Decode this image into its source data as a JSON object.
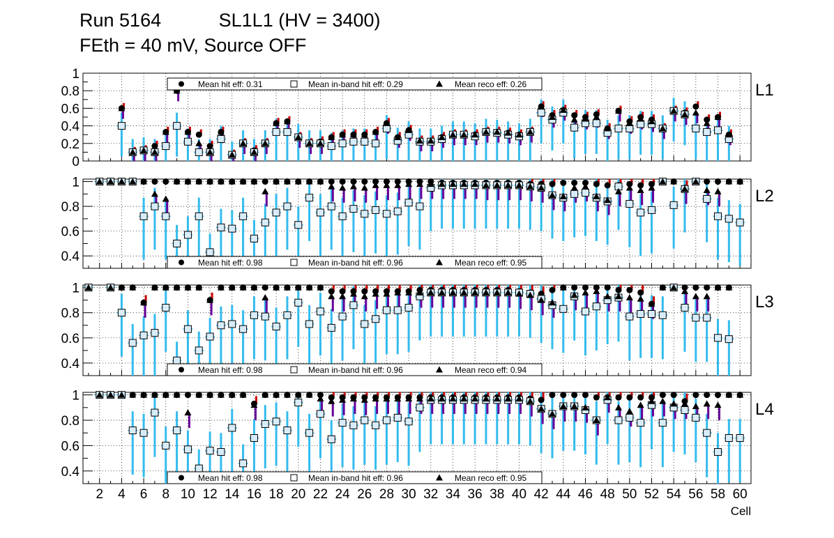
{
  "title": {
    "run": "Run 5164",
    "chamber": "SL1L1 (HV = 3400)",
    "conditions": "FEth = 40 mV, Source OFF"
  },
  "colors": {
    "hit": "#000000",
    "inband_err": "#33bbee",
    "reco_err": "#660099",
    "hit_err": "#cc0000",
    "box_fill": "#d8ecf8"
  },
  "chart_data": [
    {
      "type": "scatter",
      "panel": "L1",
      "layer_label": "L1",
      "xlabel": "Cell",
      "ylabel": "",
      "xlim": [
        0.5,
        61
      ],
      "ylim": [
        0,
        1
      ],
      "yticks": [
        "0",
        "0.2",
        "0.4",
        "0.6",
        "0.8",
        "1"
      ],
      "yticks_values": [
        0,
        0.2,
        0.4,
        0.6,
        0.8,
        1
      ],
      "legend": {
        "hit": "Mean hit  eff: 0.31",
        "inband": "Mean in-band hit eff: 0.29",
        "reco": "Mean reco eff: 0.26"
      },
      "cells": [
        4,
        5,
        6,
        7,
        8,
        9,
        10,
        11,
        12,
        13,
        14,
        15,
        16,
        17,
        18,
        19,
        20,
        21,
        22,
        23,
        24,
        25,
        26,
        27,
        28,
        29,
        30,
        31,
        32,
        33,
        34,
        35,
        36,
        37,
        38,
        39,
        40,
        41,
        42,
        43,
        44,
        45,
        46,
        47,
        48,
        49,
        50,
        51,
        52,
        53,
        54,
        55,
        56,
        57,
        58,
        59
      ],
      "series": [
        {
          "name": "hit",
          "values": [
            0.6,
            0.1,
            0.12,
            0.17,
            0.33,
            0.8,
            0.33,
            0.3,
            0.17,
            0.33,
            0.07,
            0.2,
            0.12,
            0.2,
            0.43,
            0.45,
            0.27,
            0.2,
            0.22,
            0.27,
            0.3,
            0.3,
            0.3,
            0.33,
            0.43,
            0.27,
            0.35,
            0.23,
            0.23,
            0.27,
            0.3,
            0.3,
            0.3,
            0.33,
            0.33,
            0.32,
            0.3,
            0.33,
            0.62,
            0.52,
            0.58,
            0.52,
            0.5,
            0.53,
            0.37,
            0.57,
            0.45,
            0.5,
            0.47,
            0.37,
            0.57,
            0.55,
            0.62,
            0.47,
            0.5,
            0.3
          ]
        },
        {
          "name": "inband",
          "values": [
            0.4,
            0.1,
            0.12,
            0.1,
            0.17,
            0.4,
            0.22,
            0.1,
            0.1,
            0.25,
            0.07,
            0.2,
            0.1,
            0.2,
            0.33,
            0.33,
            0.27,
            0.2,
            0.2,
            0.17,
            0.2,
            0.22,
            0.22,
            0.2,
            0.37,
            0.23,
            0.3,
            0.22,
            0.22,
            0.25,
            0.3,
            0.3,
            0.28,
            0.33,
            0.32,
            0.3,
            0.28,
            0.33,
            0.55,
            0.47,
            0.55,
            0.38,
            0.43,
            0.43,
            0.32,
            0.37,
            0.37,
            0.42,
            0.42,
            0.37,
            0.57,
            0.53,
            0.37,
            0.33,
            0.35,
            0.25
          ]
        },
        {
          "name": "reco",
          "values": [
            0.6,
            0.1,
            0.12,
            0.1,
            0.33,
            0.8,
            0.33,
            0.2,
            0.1,
            0.33,
            0.07,
            0.2,
            0.1,
            0.2,
            0.43,
            0.45,
            0.27,
            0.2,
            0.2,
            0.27,
            0.3,
            0.3,
            0.3,
            0.33,
            0.43,
            0.27,
            0.35,
            0.23,
            0.23,
            0.27,
            0.3,
            0.3,
            0.3,
            0.33,
            0.33,
            0.32,
            0.3,
            0.33,
            0.62,
            0.5,
            0.58,
            0.47,
            0.48,
            0.5,
            0.37,
            0.57,
            0.43,
            0.48,
            0.45,
            0.37,
            0.57,
            0.53,
            0.55,
            0.43,
            0.5,
            0.3
          ]
        }
      ]
    },
    {
      "type": "scatter",
      "panel": "L2",
      "layer_label": "L2",
      "xlabel": "Cell",
      "ylabel": "",
      "xlim": [
        0.5,
        61
      ],
      "ylim": [
        0.3,
        1.02
      ],
      "yticks": [
        "0.4",
        "0.6",
        "0.8",
        "1"
      ],
      "yticks_values": [
        0.4,
        0.6,
        0.8,
        1
      ],
      "legend": {
        "hit": "Mean hit  eff: 0.98",
        "inband": "Mean in-band hit eff: 0.96",
        "reco": "Mean reco eff: 0.95"
      },
      "cells": [
        2,
        3,
        4,
        5,
        6,
        7,
        8,
        9,
        10,
        11,
        12,
        13,
        14,
        15,
        16,
        17,
        18,
        19,
        20,
        21,
        22,
        23,
        24,
        25,
        26,
        27,
        28,
        29,
        30,
        31,
        32,
        33,
        34,
        35,
        36,
        37,
        38,
        39,
        40,
        41,
        42,
        43,
        44,
        45,
        46,
        47,
        48,
        49,
        50,
        51,
        52,
        53,
        54,
        55,
        56,
        57,
        58,
        59,
        60
      ],
      "series": [
        {
          "name": "hit",
          "values": [
            1,
            1,
            1,
            1,
            1,
            1,
            1,
            1,
            1,
            1,
            1,
            1,
            1,
            1,
            1,
            1,
            1,
            1,
            1,
            1,
            1,
            1,
            1,
            1,
            1,
            1,
            1,
            1,
            1,
            1,
            1,
            0.99,
            0.99,
            0.99,
            0.99,
            0.99,
            0.99,
            0.99,
            0.99,
            0.98,
            0.98,
            0.98,
            0.99,
            0.99,
            0.99,
            0.98,
            0.97,
            0.97,
            0.98,
            0.97,
            0.98,
            1,
            1,
            0.95,
            1,
            1,
            1,
            1,
            1
          ]
        },
        {
          "name": "inband",
          "values": [
            1,
            1,
            1,
            1,
            0.72,
            0.8,
            0.72,
            0.5,
            0.57,
            0.72,
            0.43,
            0.63,
            0.62,
            0.72,
            0.54,
            0.67,
            0.75,
            0.8,
            0.65,
            0.87,
            0.75,
            0.8,
            0.72,
            0.78,
            0.74,
            0.77,
            0.74,
            0.76,
            0.83,
            0.8,
            0.95,
            0.97,
            0.97,
            0.97,
            0.97,
            0.97,
            0.97,
            0.97,
            0.97,
            0.96,
            0.95,
            0.89,
            0.87,
            0.9,
            0.91,
            0.87,
            0.84,
            0.96,
            0.82,
            0.75,
            0.77,
            1,
            0.81,
            0.94,
            1,
            0.86,
            0.72,
            0.7,
            0.67
          ]
        },
        {
          "name": "reco",
          "values": [
            1,
            1,
            1,
            1,
            1,
            0.9,
            0.86,
            1,
            1,
            1,
            1,
            1,
            1,
            1,
            1,
            0.92,
            1,
            1,
            1,
            1,
            1,
            0.96,
            0.95,
            0.96,
            0.95,
            0.97,
            0.97,
            0.97,
            0.98,
            0.98,
            0.98,
            0.98,
            0.98,
            0.98,
            0.98,
            0.97,
            0.97,
            0.97,
            0.97,
            0.96,
            0.95,
            0.89,
            0.88,
            0.95,
            0.96,
            0.88,
            0.85,
            0.92,
            0.95,
            0.93,
            0.95,
            1,
            1,
            0.94,
            1,
            0.93,
            0.92,
            1,
            1
          ]
        }
      ]
    },
    {
      "type": "scatter",
      "panel": "L3",
      "layer_label": "L3",
      "xlabel": "Cell",
      "ylabel": "",
      "xlim": [
        0.5,
        61
      ],
      "ylim": [
        0.3,
        1.02
      ],
      "yticks": [
        "0.4",
        "0.6",
        "0.8",
        "1"
      ],
      "yticks_values": [
        0.4,
        0.6,
        0.8,
        1
      ],
      "legend": {
        "hit": "Mean hit  eff: 0.98",
        "inband": "Mean in-band hit eff: 0.96",
        "reco": "Mean reco eff: 0.94"
      },
      "cells": [
        1,
        3,
        4,
        5,
        6,
        7,
        8,
        9,
        10,
        11,
        12,
        13,
        14,
        15,
        16,
        17,
        18,
        19,
        20,
        21,
        22,
        23,
        24,
        25,
        26,
        27,
        28,
        29,
        30,
        31,
        32,
        33,
        34,
        35,
        36,
        37,
        38,
        39,
        40,
        41,
        42,
        43,
        44,
        45,
        46,
        47,
        48,
        49,
        50,
        51,
        52,
        53,
        54,
        55,
        56,
        57,
        58,
        59
      ],
      "series": [
        {
          "name": "hit",
          "values": [
            1,
            1,
            1,
            1,
            0.88,
            1,
            1,
            1,
            1,
            1,
            0.9,
            1,
            1,
            1,
            1,
            1,
            1,
            1,
            1,
            1,
            1,
            0.97,
            0.97,
            0.97,
            0.97,
            0.97,
            0.97,
            0.97,
            0.97,
            0.98,
            0.98,
            0.98,
            0.98,
            0.98,
            0.98,
            0.98,
            0.98,
            0.98,
            0.97,
            0.96,
            0.95,
            0.98,
            1,
            1,
            1,
            1,
            1,
            0.98,
            0.98,
            0.96,
            0.87,
            1,
            1,
            1,
            1,
            1,
            1,
            1
          ]
        },
        {
          "name": "inband",
          "values": [
            1,
            1,
            0.8,
            0.56,
            0.62,
            0.64,
            0.84,
            0.42,
            0.67,
            0.5,
            0.61,
            0.7,
            0.71,
            0.67,
            0.78,
            0.77,
            0.69,
            0.78,
            0.88,
            0.71,
            0.81,
            0.68,
            0.77,
            0.86,
            0.71,
            0.75,
            0.82,
            0.82,
            0.84,
            0.93,
            0.96,
            0.96,
            0.96,
            0.96,
            0.96,
            0.96,
            0.96,
            0.96,
            0.96,
            0.95,
            0.91,
            0.86,
            0.83,
            0.93,
            0.81,
            0.85,
            0.9,
            0.92,
            0.77,
            0.79,
            0.79,
            0.78,
            1,
            0.84,
            0.76,
            0.76,
            0.6,
            0.59
          ]
        },
        {
          "name": "reco",
          "values": [
            1,
            1,
            1,
            1,
            0.88,
            1,
            1,
            1,
            1,
            1,
            0.9,
            1,
            1,
            1,
            1,
            0.92,
            1,
            1,
            1,
            1,
            1,
            0.93,
            0.93,
            0.95,
            0.93,
            0.95,
            0.95,
            0.96,
            0.96,
            0.96,
            0.96,
            0.96,
            0.96,
            0.96,
            0.96,
            0.96,
            0.96,
            0.96,
            0.95,
            0.94,
            0.9,
            0.88,
            1,
            0.94,
            0.96,
            0.97,
            0.93,
            0.93,
            0.92,
            0.91,
            0.87,
            1,
            1,
            0.97,
            0.93,
            0.93,
            1,
            1
          ]
        }
      ]
    },
    {
      "type": "scatter",
      "panel": "L4",
      "layer_label": "L4",
      "xlabel": "Cell",
      "ylabel": "",
      "xlim": [
        0.5,
        61
      ],
      "ylim": [
        0.3,
        1.02
      ],
      "yticks": [
        "0.4",
        "0.6",
        "0.8",
        "1"
      ],
      "yticks_values": [
        0.4,
        0.6,
        0.8,
        1
      ],
      "xticks": [
        "2",
        "4",
        "6",
        "8",
        "10",
        "12",
        "14",
        "16",
        "18",
        "20",
        "22",
        "24",
        "26",
        "28",
        "30",
        "32",
        "34",
        "36",
        "38",
        "40",
        "42",
        "44",
        "46",
        "48",
        "50",
        "52",
        "54",
        "56",
        "58",
        "60"
      ],
      "legend": {
        "hit": "Mean hit  eff: 0.98",
        "inband": "Mean in-band hit eff: 0.96",
        "reco": "Mean reco eff: 0.95"
      },
      "cells": [
        2,
        3,
        4,
        5,
        6,
        7,
        8,
        9,
        10,
        11,
        12,
        13,
        14,
        15,
        16,
        17,
        18,
        19,
        20,
        21,
        22,
        23,
        24,
        25,
        26,
        27,
        28,
        29,
        30,
        31,
        32,
        33,
        34,
        35,
        36,
        37,
        38,
        39,
        40,
        41,
        42,
        43,
        44,
        45,
        46,
        47,
        48,
        49,
        50,
        51,
        52,
        53,
        54,
        55,
        56,
        57,
        58,
        59,
        60
      ],
      "series": [
        {
          "name": "hit",
          "values": [
            1,
            1,
            1,
            1,
            1,
            1,
            1,
            1,
            1,
            1,
            1,
            1,
            1,
            1,
            0.93,
            1,
            1,
            1,
            1,
            1,
            1,
            0.98,
            0.98,
            0.98,
            0.98,
            0.98,
            0.98,
            0.98,
            0.98,
            0.98,
            0.98,
            0.98,
            0.98,
            0.98,
            0.98,
            0.98,
            0.98,
            0.98,
            0.98,
            0.97,
            0.96,
            1,
            1,
            1,
            1,
            0.98,
            0.98,
            0.98,
            0.98,
            0.98,
            0.98,
            1,
            1,
            0.95,
            1,
            1,
            1,
            1,
            1
          ]
        },
        {
          "name": "inband",
          "values": [
            1,
            1,
            1,
            0.72,
            0.7,
            0.86,
            0.6,
            0.72,
            0.57,
            0.42,
            0.56,
            0.55,
            0.74,
            0.46,
            0.66,
            0.77,
            0.79,
            0.72,
            0.94,
            0.7,
            0.85,
            0.65,
            0.78,
            0.76,
            0.8,
            0.76,
            0.8,
            0.82,
            0.79,
            0.9,
            0.96,
            0.96,
            0.96,
            0.96,
            0.96,
            0.96,
            0.96,
            0.96,
            0.96,
            0.95,
            0.89,
            0.85,
            0.91,
            0.91,
            0.88,
            0.8,
            0.96,
            0.8,
            0.82,
            0.78,
            0.92,
            0.78,
            0.9,
            0.88,
            0.82,
            0.7,
            0.55,
            0.66,
            0.66
          ]
        },
        {
          "name": "reco",
          "values": [
            1,
            1,
            1,
            1,
            1,
            1,
            1,
            1,
            0.86,
            1,
            1,
            1,
            1,
            1,
            0.92,
            1,
            1,
            1,
            1,
            1,
            0.97,
            0.95,
            0.96,
            0.97,
            0.96,
            0.97,
            0.97,
            0.97,
            0.97,
            0.97,
            0.97,
            0.97,
            0.97,
            0.97,
            0.97,
            0.97,
            0.97,
            0.97,
            0.97,
            0.95,
            0.89,
            0.85,
            0.91,
            0.91,
            0.9,
            0.8,
            0.98,
            0.9,
            0.87,
            0.92,
            0.95,
            0.95,
            0.93,
            0.93,
            0.91,
            0.93,
            0.92,
            1,
            1
          ]
        }
      ]
    }
  ]
}
